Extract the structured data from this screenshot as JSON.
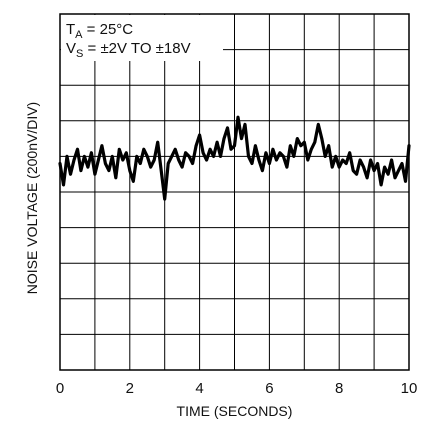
{
  "chart_data": {
    "type": "line",
    "xlabel": "TIME (SECONDS)",
    "ylabel": "NOISE VOLTAGE (200nV/DIV)",
    "xlim": [
      0,
      10
    ],
    "ylim": [
      -5,
      5
    ],
    "x_ticks": [
      "0",
      "2",
      "4",
      "6",
      "8",
      "10"
    ],
    "grid": true,
    "annotations": [
      {
        "main": "T",
        "sub": "A",
        "rest": " = 25°C"
      },
      {
        "main": "V",
        "sub": "S",
        "rest": " = ±2V TO ±18V"
      }
    ],
    "colors": {
      "trace": "#000000",
      "grid": "#000000"
    },
    "series": [
      {
        "x": [
          0.0,
          0.1,
          0.2,
          0.3,
          0.4,
          0.5,
          0.6,
          0.7,
          0.8,
          0.9,
          1.0,
          1.1,
          1.2,
          1.3,
          1.4,
          1.5,
          1.6,
          1.7,
          1.8,
          1.9,
          2.0,
          2.1,
          2.2,
          2.3,
          2.4,
          2.5,
          2.6,
          2.7,
          2.8,
          2.9,
          3.0,
          3.1,
          3.2,
          3.3,
          3.4,
          3.5,
          3.6,
          3.7,
          3.8,
          3.9,
          4.0,
          4.1,
          4.2,
          4.3,
          4.4,
          4.5,
          4.6,
          4.7,
          4.8,
          4.9,
          5.0,
          5.1,
          5.2,
          5.3,
          5.4,
          5.5,
          5.6,
          5.7,
          5.8,
          5.9,
          6.0,
          6.1,
          6.2,
          6.3,
          6.4,
          6.5,
          6.6,
          6.7,
          6.8,
          6.9,
          7.0,
          7.1,
          7.2,
          7.3,
          7.4,
          7.5,
          7.6,
          7.7,
          7.8,
          7.9,
          8.0,
          8.1,
          8.2,
          8.3,
          8.4,
          8.5,
          8.6,
          8.7,
          8.8,
          8.9,
          9.0,
          9.1,
          9.2,
          9.3,
          9.4,
          9.5,
          9.6,
          9.7,
          9.8,
          9.9,
          10.0
        ],
        "y": [
          0.8,
          0.2,
          1.0,
          0.5,
          0.9,
          1.2,
          0.6,
          1.0,
          0.7,
          1.1,
          0.5,
          0.9,
          1.3,
          0.8,
          0.6,
          1.0,
          0.4,
          1.2,
          0.9,
          1.1,
          0.6,
          0.3,
          1.0,
          0.8,
          1.2,
          1.0,
          0.7,
          0.9,
          1.4,
          0.6,
          -0.2,
          0.8,
          1.0,
          1.2,
          0.9,
          0.7,
          1.1,
          1.0,
          0.8,
          1.3,
          1.6,
          1.1,
          0.9,
          1.2,
          1.0,
          1.4,
          1.0,
          1.5,
          1.8,
          1.2,
          1.3,
          2.1,
          1.5,
          1.9,
          1.0,
          0.8,
          1.3,
          0.9,
          0.6,
          1.1,
          0.8,
          1.2,
          0.9,
          1.1,
          1.0,
          0.7,
          1.3,
          1.0,
          1.5,
          1.3,
          1.4,
          0.9,
          1.2,
          1.4,
          1.9,
          1.5,
          1.0,
          1.3,
          0.7,
          1.0,
          0.7,
          0.9,
          0.8,
          1.1,
          0.6,
          0.5,
          0.9,
          0.7,
          0.4,
          0.9,
          0.6,
          0.8,
          0.2,
          0.7,
          0.5,
          0.9,
          0.4,
          0.6,
          0.8,
          0.3,
          1.3
        ]
      }
    ]
  }
}
